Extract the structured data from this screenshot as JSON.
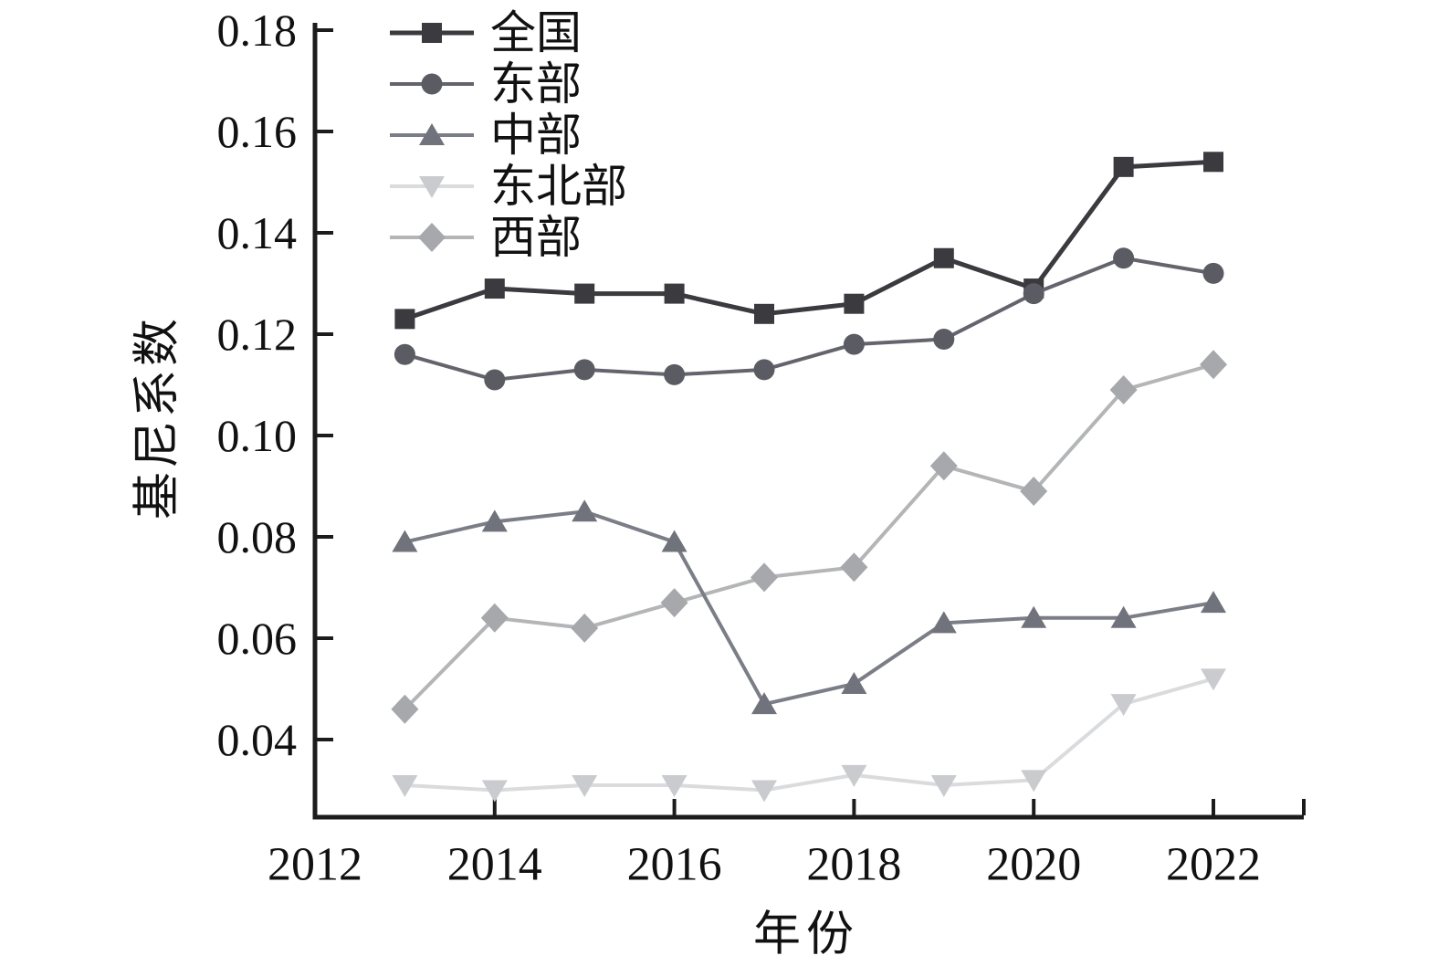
{
  "figure": {
    "background_color": "#ffffff",
    "axis_color": "#1c1c1c",
    "text_color": "#111111"
  },
  "chart_data": {
    "type": "line",
    "title": "",
    "xlabel": "年份",
    "ylabel": "基尼系数",
    "x": [
      2013,
      2014,
      2015,
      2016,
      2017,
      2018,
      2019,
      2020,
      2021,
      2022
    ],
    "xlim": [
      2012,
      2023
    ],
    "ylim": [
      0.025,
      0.181
    ],
    "grid": false,
    "legend_position": "top-left-inside",
    "x_ticks": [
      2012,
      2014,
      2016,
      2018,
      2020,
      2022
    ],
    "x_tick_labels": [
      "2012",
      "2014",
      "2016",
      "2018",
      "2020",
      "2022"
    ],
    "y_ticks": [
      0.04,
      0.06,
      0.08,
      0.1,
      0.12,
      0.14,
      0.16,
      0.18
    ],
    "y_tick_labels": [
      "0.04",
      "0.06",
      "0.08",
      "0.10",
      "0.12",
      "0.14",
      "0.16",
      "0.18"
    ],
    "series": [
      {
        "name": "全国",
        "marker": "square",
        "marker_color": "#3a3a3f",
        "line_color": "#3a3a3f",
        "line_width": 5,
        "values": [
          0.123,
          0.129,
          0.128,
          0.128,
          0.124,
          0.126,
          0.135,
          0.129,
          0.153,
          0.154
        ]
      },
      {
        "name": "东部",
        "marker": "circle",
        "marker_color": "#5a5b63",
        "line_color": "#63646c",
        "line_width": 4,
        "values": [
          0.116,
          0.111,
          0.113,
          0.112,
          0.113,
          0.118,
          0.119,
          0.128,
          0.135,
          0.132
        ]
      },
      {
        "name": "中部",
        "marker": "triangle-up",
        "marker_color": "#70737b",
        "line_color": "#7b7e86",
        "line_width": 4,
        "values": [
          0.079,
          0.083,
          0.085,
          0.079,
          0.047,
          0.051,
          0.063,
          0.064,
          0.064,
          0.067
        ]
      },
      {
        "name": "东北部",
        "marker": "triangle-down",
        "marker_color": "#c9cbce",
        "line_color": "#d9dbdd",
        "line_width": 4,
        "values": [
          0.031,
          0.03,
          0.031,
          0.031,
          0.03,
          0.033,
          0.031,
          0.032,
          0.047,
          0.052
        ]
      },
      {
        "name": "西部",
        "marker": "diamond",
        "marker_color": "#a6a8ab",
        "line_color": "#b3b5b7",
        "line_width": 4,
        "values": [
          0.046,
          0.064,
          0.062,
          0.067,
          0.072,
          0.074,
          0.094,
          0.089,
          0.109,
          0.114
        ]
      }
    ],
    "draw_order": [
      3,
      4,
      2,
      0,
      1
    ]
  }
}
